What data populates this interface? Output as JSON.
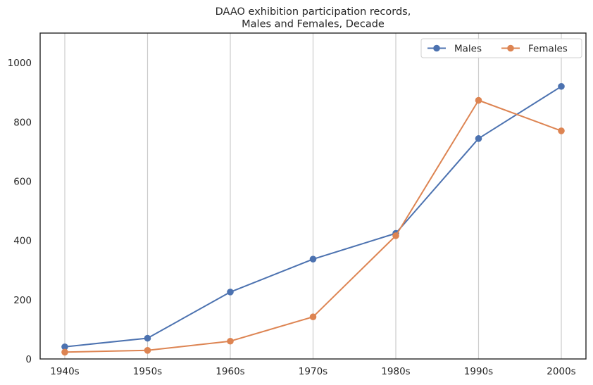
{
  "chart_data": {
    "type": "line",
    "title_lines": [
      "DAAO exhibition participation records,",
      "Males and Females, Decade"
    ],
    "xlabel": "",
    "ylabel": "",
    "categories": [
      "1940s",
      "1950s",
      "1960s",
      "1970s",
      "1980s",
      "1990s",
      "2000s"
    ],
    "ylim": [
      0,
      1100
    ],
    "yticks": [
      0,
      200,
      400,
      600,
      800,
      1000
    ],
    "grid": "vertical",
    "legend": "top-right",
    "series": [
      {
        "name": "Males",
        "color": "#4c72b0",
        "values": [
          41,
          70,
          226,
          337,
          424,
          744,
          920
        ]
      },
      {
        "name": "Females",
        "color": "#dd8452",
        "values": [
          23,
          29,
          60,
          142,
          416,
          873,
          770
        ]
      }
    ]
  }
}
